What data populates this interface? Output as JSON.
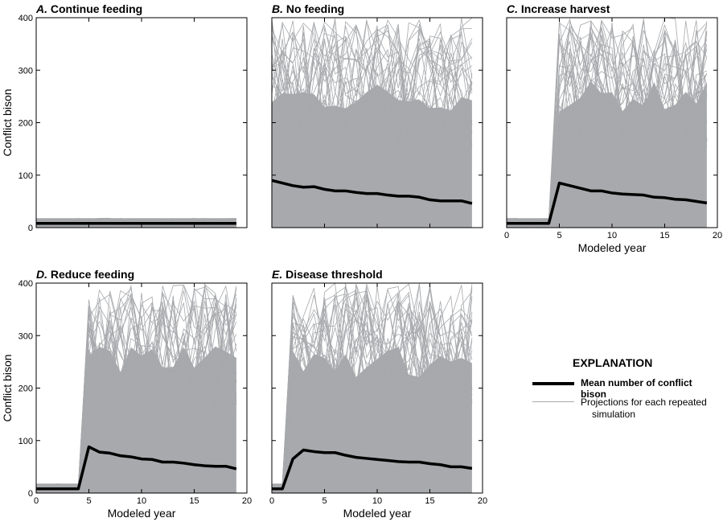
{
  "chart_data": [
    {
      "type": "line",
      "panel": "A.",
      "title": "Continue feeding",
      "ylabel": "Conflict bison",
      "xlabel": "",
      "xlim": [
        0,
        20
      ],
      "ylim": [
        0,
        400
      ],
      "xticks": [
        0,
        5,
        10,
        15,
        20
      ],
      "yticks": [
        0,
        100,
        200,
        300,
        400
      ],
      "show_xticklabels": false,
      "show_yticklabels": true,
      "mean": [
        8,
        8,
        8,
        8,
        8,
        8,
        8,
        8,
        8,
        8,
        8,
        8,
        8,
        8,
        8,
        8,
        8,
        8,
        8,
        8
      ],
      "simulation_max": [
        [
          0,
          19,
          18
        ]
      ]
    },
    {
      "type": "line",
      "panel": "B.",
      "title": "No feeding",
      "ylabel": "",
      "xlabel": "",
      "xlim": [
        0,
        20
      ],
      "ylim": [
        0,
        400
      ],
      "xticks": [
        0,
        5,
        10,
        15,
        20
      ],
      "yticks": [
        0,
        100,
        200,
        300,
        400
      ],
      "show_xticklabels": false,
      "show_yticklabels": false,
      "mean": [
        90,
        85,
        80,
        77,
        78,
        73,
        70,
        70,
        67,
        65,
        65,
        62,
        60,
        60,
        58,
        53,
        51,
        51,
        51,
        46
      ],
      "simulation_max": [
        [
          0,
          19,
          400
        ]
      ]
    },
    {
      "type": "line",
      "panel": "C.",
      "title": "Increase harvest",
      "ylabel": "",
      "xlabel": "Modeled year",
      "xlim": [
        0,
        20
      ],
      "ylim": [
        0,
        400
      ],
      "xticks": [
        0,
        5,
        10,
        15,
        20
      ],
      "yticks": [
        0,
        100,
        200,
        300,
        400
      ],
      "show_xticklabels": true,
      "show_yticklabels": false,
      "mean": [
        8,
        8,
        8,
        8,
        8,
        85,
        80,
        75,
        70,
        70,
        66,
        64,
        63,
        62,
        58,
        57,
        54,
        53,
        50,
        47
      ],
      "simulation_max": [
        [
          0,
          4,
          18
        ],
        [
          5,
          19,
          400
        ]
      ]
    },
    {
      "type": "line",
      "panel": "D.",
      "title": "Reduce feeding",
      "ylabel": "Conflict bison",
      "xlabel": "Modeled year",
      "xlim": [
        0,
        20
      ],
      "ylim": [
        0,
        400
      ],
      "xticks": [
        0,
        5,
        10,
        15,
        20
      ],
      "yticks": [
        0,
        100,
        200,
        300,
        400
      ],
      "show_xticklabels": true,
      "show_yticklabels": true,
      "mean": [
        8,
        8,
        8,
        8,
        8,
        88,
        78,
        76,
        71,
        69,
        65,
        64,
        59,
        59,
        57,
        54,
        52,
        51,
        51,
        46
      ],
      "simulation_max": [
        [
          0,
          4,
          18
        ],
        [
          5,
          19,
          400
        ]
      ]
    },
    {
      "type": "line",
      "panel": "E.",
      "title": "Disease threshold",
      "ylabel": "",
      "xlabel": "Modeled year",
      "xlim": [
        0,
        20
      ],
      "ylim": [
        0,
        400
      ],
      "xticks": [
        0,
        5,
        10,
        15,
        20
      ],
      "yticks": [
        0,
        100,
        200,
        300,
        400
      ],
      "show_xticklabels": true,
      "show_yticklabels": false,
      "mean": [
        8,
        8,
        65,
        82,
        79,
        77,
        77,
        72,
        68,
        66,
        64,
        62,
        60,
        59,
        59,
        56,
        54,
        50,
        50,
        47
      ],
      "simulation_max": [
        [
          0,
          1,
          18
        ],
        [
          2,
          19,
          400
        ]
      ]
    }
  ],
  "legend": {
    "title": "EXPLANATION",
    "mean_label": "Mean number of conflict bison",
    "sim_label_1": "Projections for each repeated",
    "sim_label_2": "simulation"
  },
  "colors": {
    "mean": "#000000",
    "simulation": "#a7a9ac"
  }
}
